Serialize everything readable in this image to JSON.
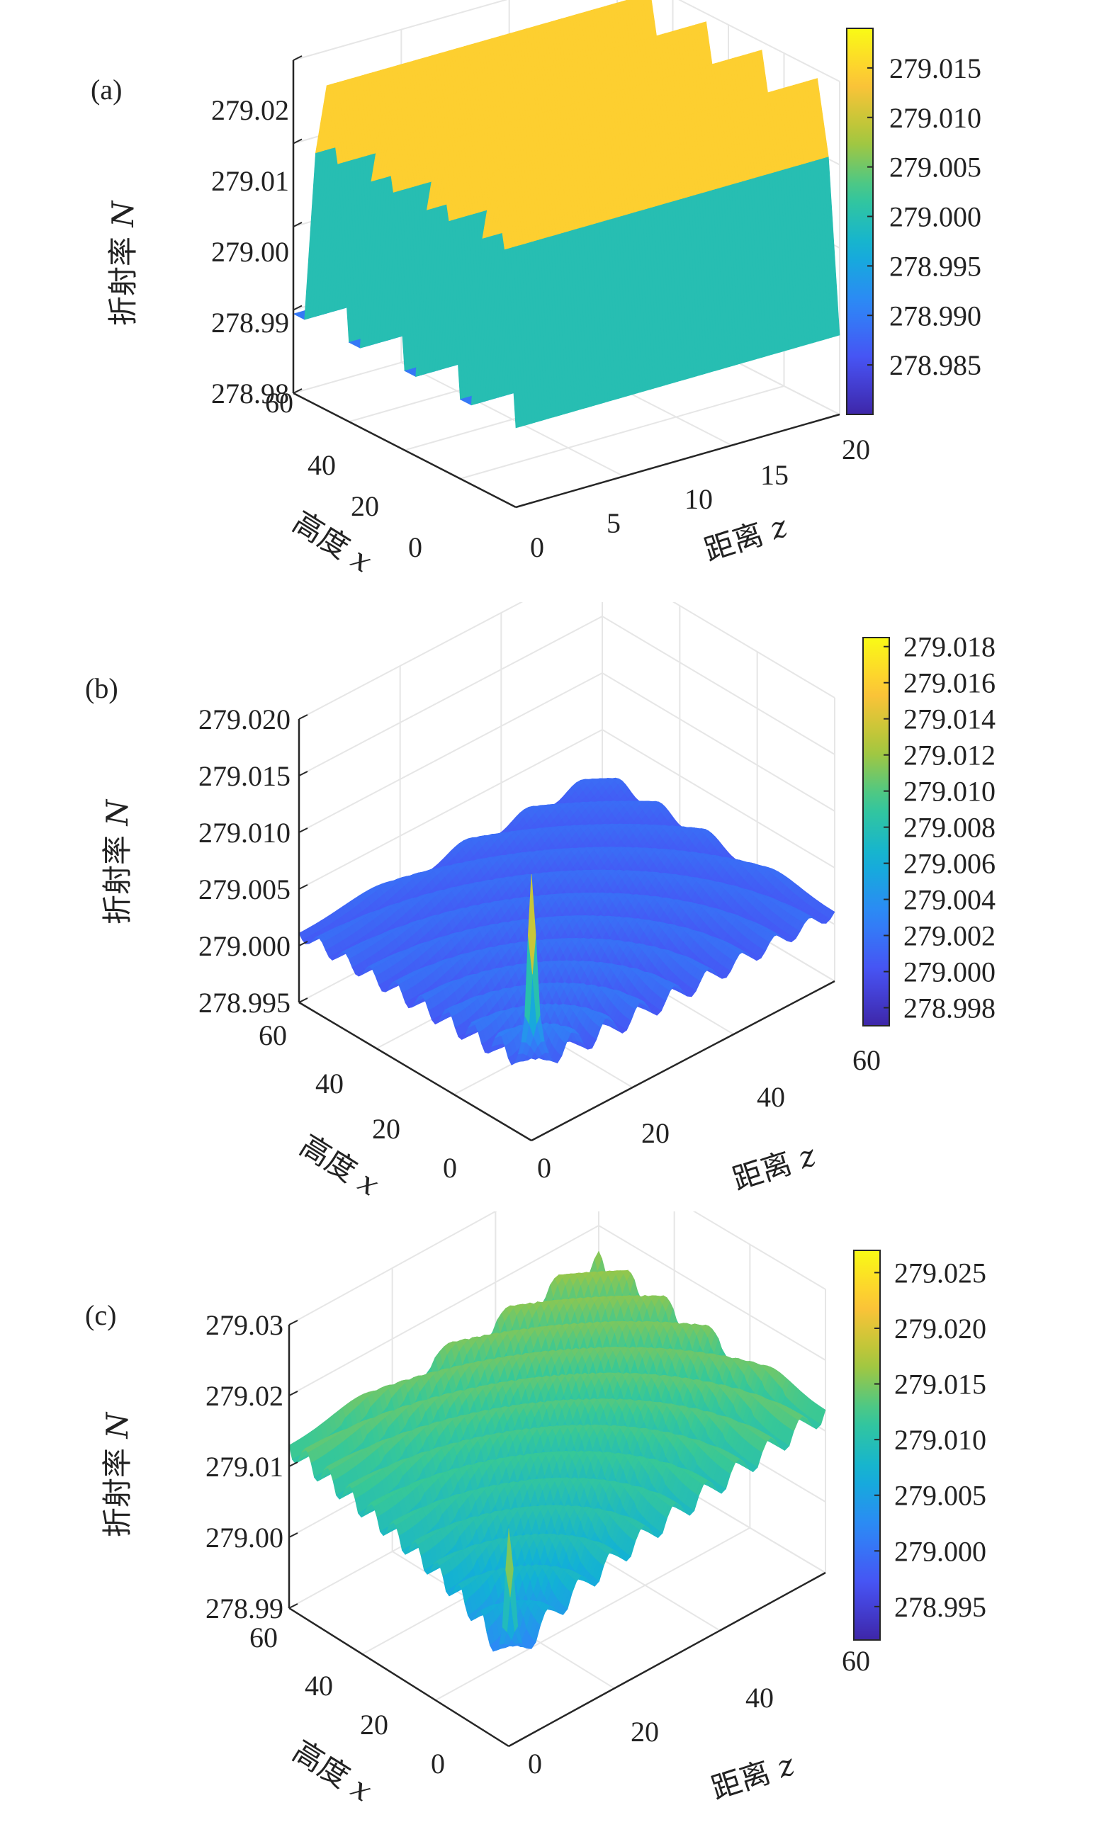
{
  "chart_data": [
    {
      "panel": "(a)",
      "type": "surface3d",
      "zlabel": "折射率 N",
      "xlabel": "高度 x",
      "ylabel": "距离 z",
      "x_ticks": [
        "0",
        "20",
        "40",
        "60"
      ],
      "z_dist_ticks": [
        "0",
        "5",
        "10",
        "15",
        "20"
      ],
      "n_ticks": [
        "278.98",
        "278.99",
        "279.00",
        "279.01",
        "279.02"
      ],
      "x_range": [
        0,
        60
      ],
      "z_dist_range": [
        0,
        20
      ],
      "n_range": [
        278.98,
        279.02
      ],
      "colorbar_ticks": [
        "278.985",
        "278.990",
        "278.995",
        "279.000",
        "279.005",
        "279.010",
        "279.015"
      ],
      "colorbar_range": [
        278.98,
        279.019
      ],
      "surface": {
        "base": 278.98,
        "peak": 279.019,
        "ridges_along_x": 4,
        "variation": "sinusoidal across height x, constant along distance z"
      }
    },
    {
      "panel": "(b)",
      "type": "surface3d",
      "zlabel": "折射率 N",
      "xlabel": "高度 x",
      "ylabel": "距离 z",
      "x_ticks": [
        "0",
        "20",
        "40",
        "60"
      ],
      "z_dist_ticks": [
        "0",
        "20",
        "40",
        "60"
      ],
      "n_ticks": [
        "278.995",
        "279.000",
        "279.005",
        "279.010",
        "279.015",
        "279.020"
      ],
      "x_range": [
        0,
        60
      ],
      "z_dist_range": [
        0,
        60
      ],
      "n_range": [
        278.995,
        279.02
      ],
      "colorbar_ticks": [
        "278.998",
        "279.000",
        "279.002",
        "279.004",
        "279.006",
        "279.008",
        "279.010",
        "279.012",
        "279.014",
        "279.016",
        "279.018"
      ],
      "colorbar_range": [
        278.997,
        279.0185
      ],
      "surface": {
        "base": 279.0,
        "peak": 279.0185,
        "peak_location": "corner x=0, z=0",
        "ripples": "concentric rings decaying outward"
      }
    },
    {
      "panel": "(c)",
      "type": "surface3d",
      "zlabel": "折射率 N",
      "xlabel": "高度 x",
      "ylabel": "距离 z",
      "x_ticks": [
        "0",
        "20",
        "40",
        "60"
      ],
      "z_dist_ticks": [
        "0",
        "20",
        "40",
        "60"
      ],
      "n_ticks": [
        "278.99",
        "279.00",
        "279.01",
        "279.02",
        "279.03"
      ],
      "x_range": [
        0,
        60
      ],
      "z_dist_range": [
        0,
        60
      ],
      "n_range": [
        278.99,
        279.03
      ],
      "colorbar_ticks": [
        "278.995",
        "279.000",
        "279.005",
        "279.010",
        "279.015",
        "279.020",
        "279.025"
      ],
      "colorbar_range": [
        278.992,
        279.027
      ],
      "surface": {
        "base": 279.002,
        "peak": 279.027,
        "peak_location": "corner x=0, z=0",
        "ripples": "concentric terraced rings rising outward"
      }
    }
  ]
}
